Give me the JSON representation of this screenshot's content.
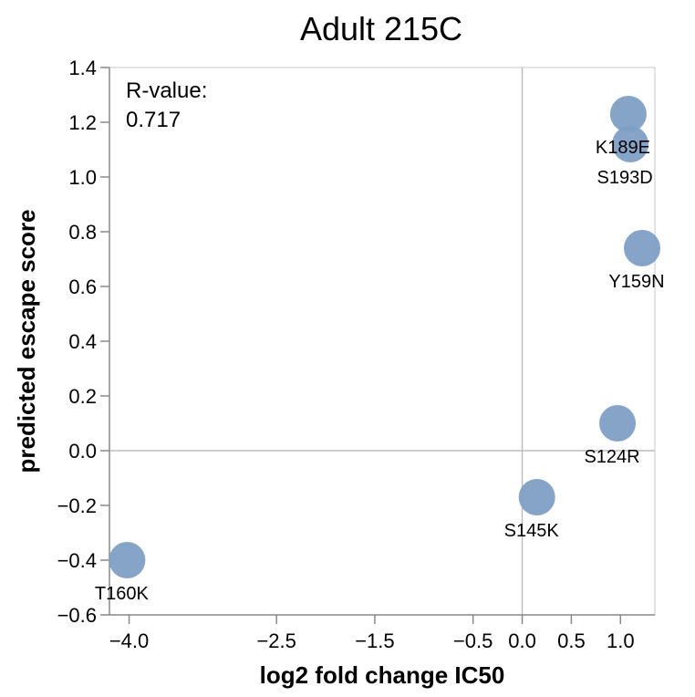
{
  "chart_data": {
    "type": "scatter",
    "title": "Adult 215C",
    "xlabel": "log2 fold change IC50",
    "ylabel": "predicted escape score",
    "xlim": [
      -4.2,
      1.35
    ],
    "ylim": [
      -0.6,
      1.4
    ],
    "x_ticks": [
      -4.0,
      -2.5,
      -1.5,
      -0.5,
      0.0,
      0.5,
      1.0
    ],
    "x_tick_labels": [
      "−4.0",
      "−2.5",
      "−1.5",
      "−0.5",
      "0.0",
      "0.5",
      "1.0"
    ],
    "y_ticks": [
      -0.6,
      -0.4,
      -0.2,
      0.0,
      0.2,
      0.4,
      0.6,
      0.8,
      1.0,
      1.2,
      1.4
    ],
    "y_tick_labels": [
      "−0.6",
      "−0.4",
      "−0.2",
      "0.0",
      "0.2",
      "0.4",
      "0.6",
      "0.8",
      "1.0",
      "1.2",
      "1.4"
    ],
    "grid": false,
    "zero_lines": true,
    "point_color": "#7f9fc4",
    "points": [
      {
        "label": "T160K",
        "x": -4.02,
        "y": -0.4
      },
      {
        "label": "S145K",
        "x": 0.15,
        "y": -0.17
      },
      {
        "label": "S124R",
        "x": 0.97,
        "y": 0.1
      },
      {
        "label": "Y159N",
        "x": 1.22,
        "y": 0.74
      },
      {
        "label": "S193D",
        "x": 1.1,
        "y": 1.12
      },
      {
        "label": "K189E",
        "x": 1.08,
        "y": 1.23
      }
    ],
    "annotation": {
      "title": "R-value:",
      "value": "0.717"
    }
  }
}
